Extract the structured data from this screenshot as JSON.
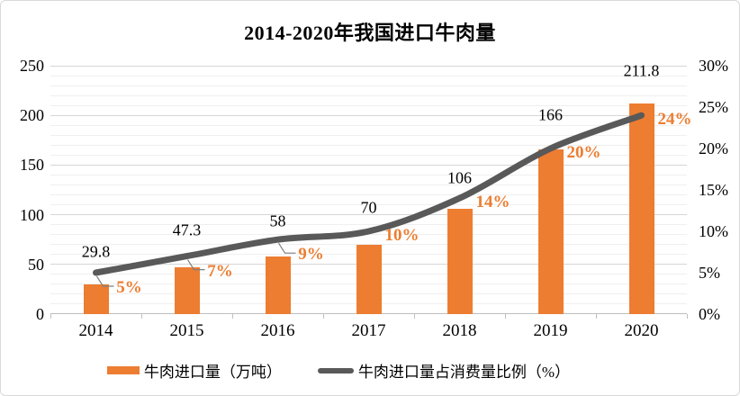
{
  "chart_data": {
    "type": "combo-bar-line",
    "title": "2014-2020年我国进口牛肉量",
    "categories": [
      "2014",
      "2015",
      "2016",
      "2017",
      "2018",
      "2019",
      "2020"
    ],
    "series": [
      {
        "name": "牛肉进口量（万吨）",
        "type": "bar",
        "axis": "left",
        "color": "#ED7D31",
        "values": [
          29.8,
          47.3,
          58,
          70,
          106,
          166,
          211.8
        ],
        "labels": [
          "29.8",
          "47.3",
          "58",
          "70",
          "106",
          "166",
          "211.8"
        ]
      },
      {
        "name": "牛肉进口量占消费量比例（%）",
        "type": "line",
        "axis": "right",
        "color": "#595959",
        "values": [
          5,
          7,
          9,
          10,
          14,
          20,
          24
        ],
        "labels": [
          "5%",
          "7%",
          "9%",
          "10%",
          "14%",
          "20%",
          "24%"
        ]
      }
    ],
    "axes": {
      "left": {
        "min": 0,
        "max": 250,
        "step": 50,
        "minor_step": 10,
        "ticks": [
          "0",
          "50",
          "100",
          "150",
          "200",
          "250"
        ]
      },
      "right": {
        "min": 0,
        "max": 30,
        "step": 5,
        "ticks": [
          "0%",
          "5%",
          "10%",
          "15%",
          "20%",
          "25%",
          "30%"
        ]
      }
    },
    "grid": {
      "major": true,
      "minor": true,
      "major_color": "#D6D6D6",
      "minor_color": "#EFEFEF"
    },
    "legend_position": "bottom",
    "label_colors": {
      "bar_value": "#000000",
      "line_pct": "#ED7D31"
    },
    "layout_hints": {
      "pct_label_callouts": [
        true,
        true,
        true,
        false,
        false,
        false,
        false
      ],
      "value_label_dy": [
        -23,
        -29,
        -20,
        -26,
        -22,
        -37,
        -36
      ],
      "pct_label_dx": 37
    }
  }
}
